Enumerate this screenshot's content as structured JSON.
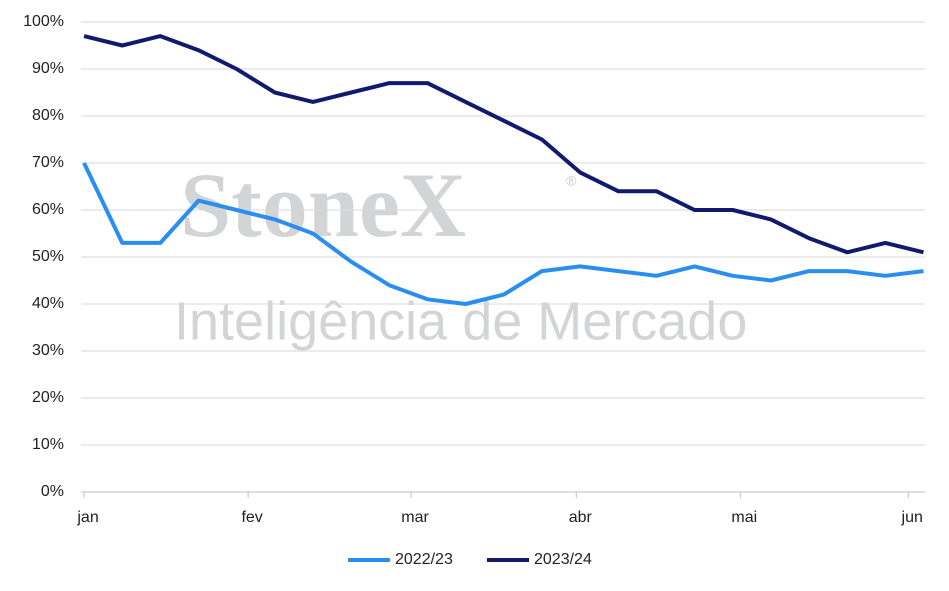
{
  "chart_data": {
    "type": "line",
    "watermark": {
      "brand": "StoneX",
      "mark": "®",
      "subtitle": "Inteligência de Mercado"
    },
    "x": [
      0,
      1,
      2,
      3,
      4,
      5,
      6,
      7,
      8,
      9,
      10,
      11,
      12,
      13,
      14,
      15,
      16,
      17,
      18,
      19,
      20,
      21,
      22
    ],
    "xlim": [
      -0.08,
      22.04
    ],
    "xticks": [
      {
        "value": 0,
        "label": "jan"
      },
      {
        "value": 4.3,
        "label": "fev"
      },
      {
        "value": 8.57,
        "label": "mar"
      },
      {
        "value": 12.9,
        "label": "abr"
      },
      {
        "value": 17.2,
        "label": "mai"
      },
      {
        "value": 21.6,
        "label": "jun"
      }
    ],
    "ylim": [
      0,
      100
    ],
    "yticks": [
      {
        "value": 0,
        "label": "0%"
      },
      {
        "value": 10,
        "label": "10%"
      },
      {
        "value": 20,
        "label": "20%"
      },
      {
        "value": 30,
        "label": "30%"
      },
      {
        "value": 40,
        "label": "40%"
      },
      {
        "value": 50,
        "label": "50%"
      },
      {
        "value": 60,
        "label": "60%"
      },
      {
        "value": 70,
        "label": "70%"
      },
      {
        "value": 80,
        "label": "80%"
      },
      {
        "value": 90,
        "label": "90%"
      },
      {
        "value": 100,
        "label": "100%"
      }
    ],
    "grid": true,
    "legend": "bottom",
    "series": [
      {
        "name": "2022/23",
        "color": "#2a8ef0",
        "values": [
          70,
          53,
          53,
          62,
          60,
          58,
          55,
          49,
          44,
          41,
          40,
          42,
          47,
          48,
          47,
          46,
          48,
          46,
          45,
          47,
          47,
          46,
          47
        ]
      },
      {
        "name": "2023/24",
        "color": "#121a6e",
        "values": [
          97,
          95,
          97,
          94,
          90,
          85,
          83,
          85,
          87,
          87,
          83,
          79,
          75,
          68,
          64,
          64,
          60,
          60,
          58,
          54,
          51,
          53,
          51
        ]
      }
    ]
  }
}
